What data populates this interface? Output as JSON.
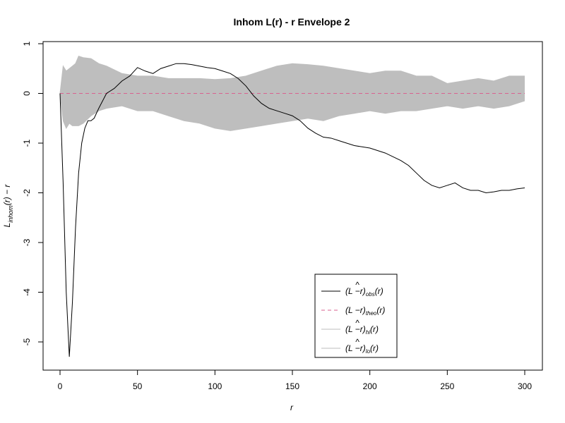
{
  "chart_data": {
    "type": "line",
    "title": "Inhom L(r) - r Envelope 2",
    "xlabel": "r",
    "ylabel": "L_{inhom}(r) - r",
    "ylabel_main": "L",
    "ylabel_sub": "inhom",
    "ylabel_tail": "(r) − r",
    "xlim": [
      0,
      300
    ],
    "ylim": [
      -5.5,
      1.0
    ],
    "xticks": [
      0,
      50,
      100,
      150,
      200,
      250,
      300
    ],
    "yticks": [
      -5,
      -4,
      -3,
      -2,
      -1,
      0,
      1
    ],
    "grid": false,
    "legend_position": "bottom-right",
    "colors": {
      "obs": "#000000",
      "theo": "#d9628f",
      "envelope": "#bebebe"
    },
    "legend": [
      {
        "main": "(L",
        "hat": true,
        "tail": "−r)",
        "sub": "obs",
        "end": "(r)",
        "style": "solid-black"
      },
      {
        "main": "(L",
        "hat": false,
        "tail": "−r)",
        "sub": "theo",
        "end": "(r)",
        "style": "dashed-pink"
      },
      {
        "main": "(L",
        "hat": true,
        "tail": "−r)",
        "sub": "hi",
        "end": "(r)",
        "style": "solid-grey"
      },
      {
        "main": "(L",
        "hat": true,
        "tail": "−r)",
        "sub": "lo",
        "end": "(r)",
        "style": "solid-grey"
      }
    ],
    "series": [
      {
        "name": "obs",
        "x": [
          0,
          2,
          4,
          6,
          8,
          10,
          12,
          14,
          16,
          18,
          20,
          22,
          25,
          30,
          35,
          40,
          45,
          50,
          55,
          60,
          65,
          70,
          75,
          80,
          85,
          90,
          95,
          100,
          105,
          110,
          115,
          120,
          125,
          130,
          135,
          140,
          145,
          150,
          155,
          160,
          165,
          170,
          175,
          180,
          190,
          200,
          210,
          220,
          225,
          230,
          235,
          240,
          245,
          250,
          255,
          260,
          265,
          270,
          275,
          280,
          285,
          290,
          295,
          300
        ],
        "y": [
          0,
          -1.8,
          -4.0,
          -5.3,
          -4.2,
          -2.7,
          -1.6,
          -1.0,
          -0.7,
          -0.55,
          -0.55,
          -0.5,
          -0.3,
          0.0,
          0.1,
          0.25,
          0.35,
          0.52,
          0.45,
          0.4,
          0.5,
          0.55,
          0.6,
          0.6,
          0.58,
          0.55,
          0.52,
          0.5,
          0.45,
          0.4,
          0.3,
          0.15,
          -0.05,
          -0.2,
          -0.3,
          -0.35,
          -0.4,
          -0.45,
          -0.55,
          -0.7,
          -0.8,
          -0.88,
          -0.9,
          -0.95,
          -1.05,
          -1.1,
          -1.2,
          -1.35,
          -1.45,
          -1.6,
          -1.75,
          -1.85,
          -1.9,
          -1.85,
          -1.8,
          -1.9,
          -1.95,
          -1.95,
          -2.0,
          -1.98,
          -1.95,
          -1.95,
          -1.92,
          -1.9
        ]
      },
      {
        "name": "theo",
        "x": [
          0,
          300
        ],
        "y": [
          0,
          0
        ]
      },
      {
        "name": "hi",
        "x": [
          0,
          2,
          4,
          6,
          8,
          10,
          12,
          15,
          20,
          25,
          30,
          40,
          50,
          60,
          70,
          80,
          90,
          100,
          110,
          120,
          130,
          140,
          150,
          160,
          170,
          180,
          190,
          200,
          210,
          220,
          230,
          240,
          250,
          260,
          270,
          280,
          290,
          300
        ],
        "y": [
          0.0,
          0.55,
          0.45,
          0.5,
          0.55,
          0.6,
          0.75,
          0.72,
          0.7,
          0.6,
          0.55,
          0.4,
          0.35,
          0.35,
          0.3,
          0.3,
          0.3,
          0.28,
          0.3,
          0.35,
          0.45,
          0.55,
          0.6,
          0.58,
          0.55,
          0.5,
          0.45,
          0.4,
          0.45,
          0.45,
          0.35,
          0.35,
          0.2,
          0.25,
          0.3,
          0.25,
          0.35,
          0.35
        ]
      },
      {
        "name": "lo",
        "x": [
          0,
          2,
          4,
          6,
          8,
          10,
          12,
          15,
          20,
          25,
          30,
          40,
          50,
          60,
          70,
          80,
          90,
          100,
          110,
          120,
          130,
          140,
          150,
          160,
          170,
          180,
          190,
          200,
          210,
          220,
          230,
          240,
          250,
          260,
          270,
          280,
          290,
          300
        ],
        "y": [
          0.0,
          -0.55,
          -0.7,
          -0.6,
          -0.65,
          -0.65,
          -0.65,
          -0.6,
          -0.45,
          -0.35,
          -0.3,
          -0.25,
          -0.35,
          -0.35,
          -0.45,
          -0.55,
          -0.6,
          -0.7,
          -0.75,
          -0.7,
          -0.65,
          -0.6,
          -0.55,
          -0.5,
          -0.55,
          -0.45,
          -0.4,
          -0.35,
          -0.4,
          -0.35,
          -0.35,
          -0.3,
          -0.25,
          -0.3,
          -0.25,
          -0.3,
          -0.25,
          -0.15
        ]
      }
    ]
  }
}
